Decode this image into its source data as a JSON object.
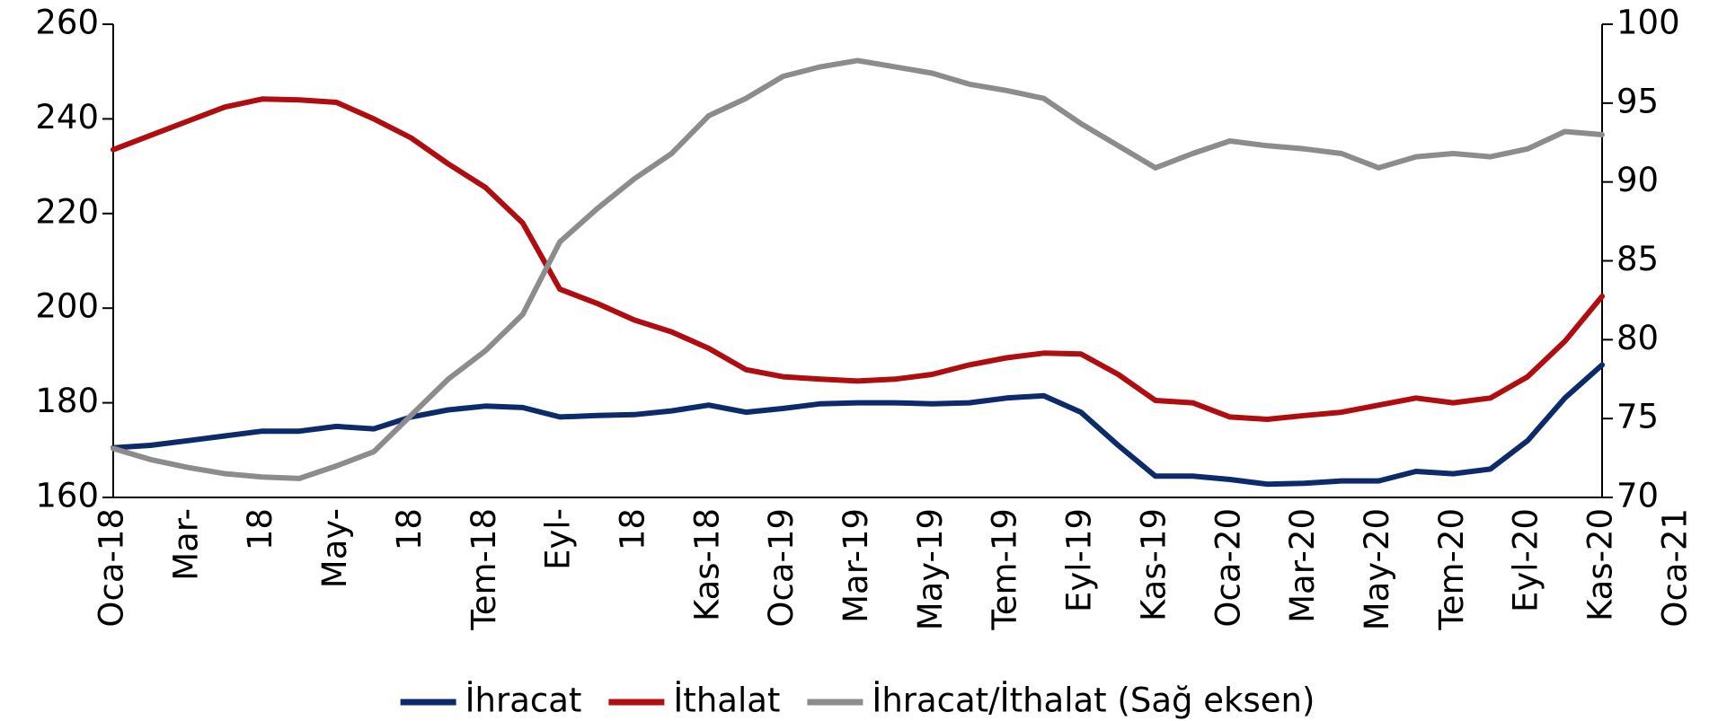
{
  "chart_data": {
    "type": "line",
    "categories": [
      "Oca-18",
      null,
      "Mar-",
      null,
      "18",
      null,
      "May-",
      null,
      "18",
      null,
      "Tem-18",
      null,
      "Eyl-",
      null,
      "18",
      null,
      "Kas-18",
      null,
      "Oca-19",
      null,
      "Mar-19",
      null,
      "May-19",
      null,
      "Tem-19",
      null,
      "Eyl-19",
      null,
      "Kas-19",
      null,
      "Oca-20",
      null,
      "Mar-20",
      null,
      "May-20",
      null,
      "Tem-20",
      null,
      "Eyl-20",
      null,
      "Kas-20",
      null,
      "Oca-21"
    ],
    "series": [
      {
        "name": "İhracat",
        "color": "#0d2a6b",
        "values": [
          170.5,
          171,
          172,
          173,
          174,
          174,
          175,
          174.5,
          177,
          178.5,
          179.3,
          179,
          177,
          177.3,
          177.5,
          178.3,
          179.5,
          178,
          178.8,
          179.8,
          180,
          180,
          179.8,
          180,
          181,
          181.5,
          178,
          171,
          164.5,
          164.5,
          163.8,
          162.8,
          163,
          163.5,
          163.5,
          165.5,
          165,
          166,
          172,
          181,
          188,
          null,
          null
        ]
      },
      {
        "name": "İthalat",
        "color": "#b00d10",
        "values": [
          233.5,
          236.5,
          239.5,
          242.5,
          244.2,
          244,
          243.5,
          240,
          236,
          230.5,
          225.5,
          218,
          204,
          201,
          197.5,
          195,
          191.5,
          187,
          185.5,
          185,
          184.6,
          185,
          186,
          188,
          189.5,
          190.5,
          190.3,
          186,
          180.5,
          180,
          177,
          176.5,
          177.3,
          178,
          179.5,
          181,
          180,
          181,
          185.5,
          193,
          202.5,
          null,
          null
        ]
      },
      {
        "name": "İhracat/İthalat (Sağ eksen)",
        "color": "#8c8c8c",
        "axis": "y2",
        "values": [
          73.1,
          72.4,
          71.9,
          71.5,
          71.3,
          71.2,
          72.0,
          72.9,
          75.2,
          77.5,
          79.3,
          81.6,
          86.2,
          88.3,
          90.2,
          91.8,
          94.2,
          95.3,
          96.7,
          97.3,
          97.7,
          97.3,
          96.9,
          96.2,
          95.8,
          95.3,
          93.7,
          92.3,
          90.9,
          91.8,
          92.6,
          92.3,
          92.1,
          91.8,
          90.9,
          91.6,
          91.8,
          91.6,
          92.1,
          93.2,
          93.0,
          null,
          null
        ]
      }
    ],
    "ylim": [
      160,
      260
    ],
    "yticks": [
      160,
      180,
      200,
      220,
      240,
      260
    ],
    "y2lim": [
      70,
      100
    ],
    "y2ticks": [
      70,
      75,
      80,
      85,
      90,
      95,
      100
    ],
    "grid": false,
    "legend": "bottom"
  }
}
